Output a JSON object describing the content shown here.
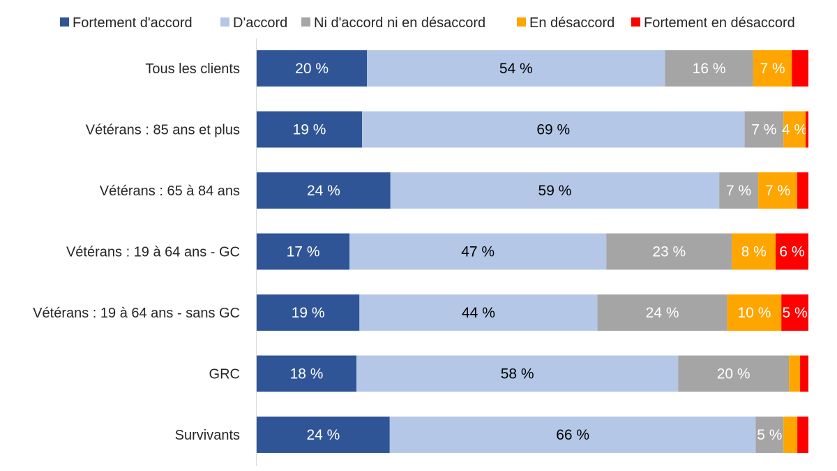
{
  "chart_data": {
    "type": "bar",
    "orientation": "horizontal",
    "stacked": true,
    "percent": true,
    "legend_position": "top",
    "grid": false,
    "xlim": [
      0,
      100
    ],
    "categories": [
      "Tous les clients",
      "Vétérans : 85 ans et plus",
      "Vétérans : 65 à 84 ans",
      "Vétérans : 19 à 64 ans - GC",
      "Vétérans : 19 à 64 ans - sans GC",
      "GRC",
      "Survivants"
    ],
    "series": [
      {
        "name": "Fortement d'accord",
        "color": "#2F5597",
        "label_color": "#ffffff",
        "values": [
          20,
          19,
          24,
          17,
          19,
          18,
          24
        ],
        "labels": [
          "20 %",
          "19 %",
          "24 %",
          "17 %",
          "19 %",
          "18 %",
          "24 %"
        ]
      },
      {
        "name": "D'accord",
        "color": "#B4C7E7",
        "label_color": "#000000",
        "values": [
          54,
          69,
          59,
          47,
          44,
          58,
          66
        ],
        "labels": [
          "54 %",
          "69 %",
          "59 %",
          "47 %",
          "44 %",
          "58 %",
          "66 %"
        ]
      },
      {
        "name": "Ni d'accord ni en désaccord",
        "color": "#A5A5A5",
        "label_color": "#ffffff",
        "values": [
          16,
          7,
          7,
          23,
          24,
          20,
          5
        ],
        "labels": [
          "16 %",
          "7 %",
          "7 %",
          "23 %",
          "24 %",
          "20 %",
          "5 %"
        ]
      },
      {
        "name": "En désaccord",
        "color": "#FFA500",
        "label_color": "#ffffff",
        "values": [
          7,
          4,
          7,
          8,
          10,
          2,
          2.5
        ],
        "labels": [
          "7 %",
          "4 %",
          "7 %",
          "8 %",
          "10 %",
          "",
          ""
        ]
      },
      {
        "name": "Fortement en désaccord",
        "color": "#FF0000",
        "label_color": "#ffffff",
        "values": [
          3,
          0.5,
          2,
          6,
          5,
          1.5,
          2
        ],
        "labels": [
          "",
          "",
          "",
          "6 %",
          "5 %",
          "",
          ""
        ]
      }
    ]
  }
}
